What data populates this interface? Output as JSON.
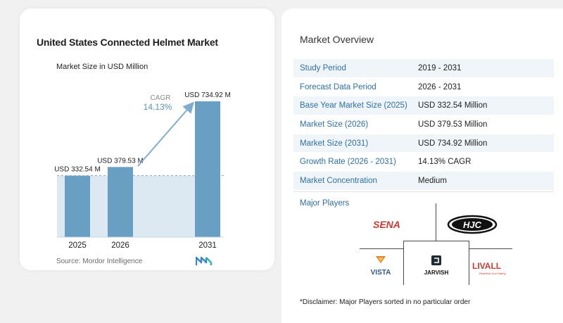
{
  "chart": {
    "title": "United States Connected Helmet Market",
    "subtitle": "Market Size in USD Million",
    "source": "Source:  Mordor Intelligence",
    "cagr_label": "CAGR",
    "cagr_value": "14.13%",
    "colors": {
      "bar": "#6a9fc4",
      "area": "#dde9f2",
      "arrow": "#7fadcf",
      "cagr_value": "#5b8fbc"
    }
  },
  "chart_data": {
    "type": "bar",
    "categories": [
      "2025",
      "2026",
      "2031"
    ],
    "values": [
      332.54,
      379.53,
      734.92
    ],
    "value_labels": [
      "USD 332.54 M",
      "USD 379.53 M",
      "USD 734.92 M"
    ],
    "title": "United States Connected Helmet Market",
    "subtitle": "Market Size in USD Million",
    "ylim": [
      0,
      734.92
    ],
    "grid": false,
    "annotation": {
      "text": "CAGR 14.13%",
      "from": "2026",
      "to": "2031"
    }
  },
  "overview": {
    "title": "Market Overview",
    "rows": [
      {
        "key": "Study Period",
        "value": "2019 - 2031"
      },
      {
        "key": "Forecast Data Period",
        "value": "2026 - 2031"
      },
      {
        "key": "Base Year Market Size (2025)",
        "value": "USD 332.54 Million"
      },
      {
        "key": "Market Size (2026)",
        "value": "USD 379.53 Million"
      },
      {
        "key": "Market Size (2031)",
        "value": "USD 734.92 Million"
      },
      {
        "key": "Growth Rate (2026 - 2031)",
        "value": "14.13% CAGR"
      },
      {
        "key": "Market Concentration",
        "value": "Medium"
      }
    ]
  },
  "players": {
    "title": "Major Players",
    "logos": [
      "SENA",
      "HJC",
      "VISTA",
      "JARVISH",
      "LIVALL"
    ],
    "livall_tagline": "Redefine Your Safety"
  },
  "disclaimer": "*Disclaimer: Major Players sorted in no particular order"
}
